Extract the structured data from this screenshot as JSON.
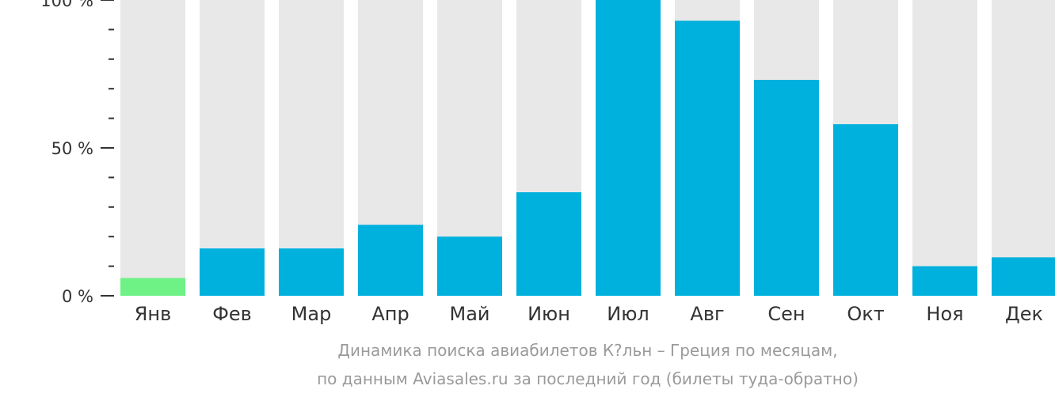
{
  "chart_data": {
    "type": "bar",
    "categories": [
      "Янв",
      "Фев",
      "Мар",
      "Апр",
      "Май",
      "Июн",
      "Июл",
      "Авг",
      "Сен",
      "Окт",
      "Ноя",
      "Дек"
    ],
    "values": [
      6,
      16,
      16,
      24,
      20,
      35,
      100,
      93,
      73,
      58,
      10,
      13
    ],
    "highlight_index": 0,
    "ylim": [
      0,
      100
    ],
    "y_ticks": [
      {
        "value": 0,
        "label": "0 %"
      },
      {
        "value": 50,
        "label": "50 %"
      },
      {
        "value": 100,
        "label": "100 %"
      }
    ],
    "y_minor_step": 10,
    "title": "",
    "xlabel": "",
    "ylabel": "",
    "grid": false,
    "colors": {
      "bar": "#00b0dd",
      "highlight": "#6ef286",
      "track": "#e8e8e8",
      "axis": "#333333"
    }
  },
  "caption": {
    "line1": "Динамика поиска авиабилетов К?льн – Греция по месяцам,",
    "line2": "по данным Aviasales.ru за последний год (билеты туда-обратно)"
  }
}
